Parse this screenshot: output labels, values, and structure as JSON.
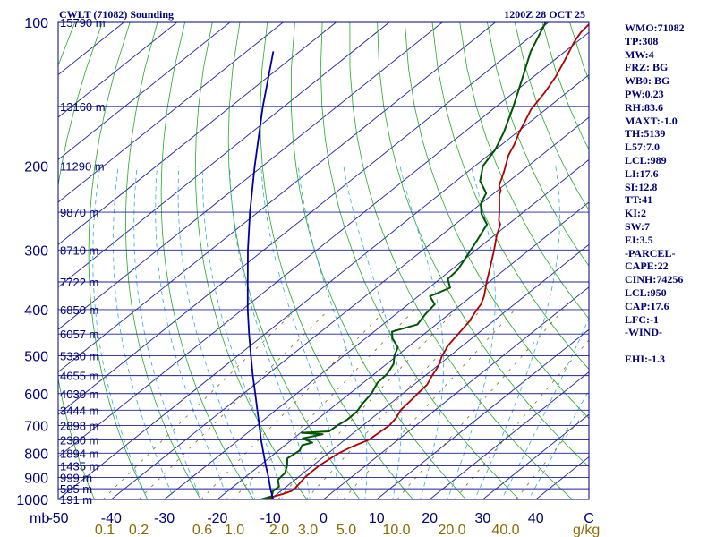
{
  "header": {
    "station_title": "CWLT (71082) Sounding",
    "time_title": "1200Z 28 OCT 25"
  },
  "info_panel": [
    "WMO:71082",
    "TP:308",
    "MW:4",
    "FRZ: BG",
    "WB0: BG",
    "PW:0.23",
    "RH:83.6",
    "MAXT:-1.0",
    "TH:5139",
    "L57:7.0",
    "LCL:989",
    "LI:17.6",
    "SI:12.8",
    "TT:41",
    "KI:2",
    "SW:7",
    "EI:3.5",
    "-PARCEL-",
    "CAPE:22",
    "CINH:74256",
    "LCL:950",
    "CAP:17.6",
    "LFC:-1",
    "-WIND-",
    "",
    "EHI:-1.3"
  ],
  "colors": {
    "axis": "#00007a",
    "isobar": "#1f1fa0",
    "isotherm": "#1f1fa0",
    "dry_adiabat": "#22aa22",
    "moist_adiabat": "#33aadd",
    "mixing_ratio": "#8a6a00",
    "temperature": "#b00000",
    "dewpoint": "#005500",
    "parcel": "#0000aa"
  },
  "chart_data": {
    "type": "line",
    "title": "CWLT (71082) Sounding",
    "subtitle": "1200Z 28 OCT 25",
    "xlabel": "C",
    "ylabel": "mb",
    "xlim": [
      -50,
      50
    ],
    "ylim": [
      1000,
      100
    ],
    "pressure_ticks": [
      "100",
      "200",
      "300",
      "400",
      "500",
      "600",
      "700",
      "800",
      "900",
      "1000"
    ],
    "temperature_ticks": [
      "-50",
      "-40",
      "-30",
      "-20",
      "-10",
      "0",
      "10",
      "20",
      "30",
      "40"
    ],
    "mixing_ratio_ticks": [
      "0.1",
      "0.2",
      "0.6",
      "1.0",
      "2.0",
      "3.0",
      "5.0",
      "10.0",
      "20.0",
      "40.0"
    ],
    "mixing_ratio_unit": "g/kg",
    "height_labels": [
      {
        "p": 100,
        "label": "15790 m"
      },
      {
        "p": 150,
        "label": "13160 m"
      },
      {
        "p": 200,
        "label": "11290 m"
      },
      {
        "p": 250,
        "label": "9870 m"
      },
      {
        "p": 300,
        "label": "8710 m"
      },
      {
        "p": 350,
        "label": "7722 m"
      },
      {
        "p": 400,
        "label": "6850 m"
      },
      {
        "p": 450,
        "label": "6057 m"
      },
      {
        "p": 500,
        "label": "5330 m"
      },
      {
        "p": 550,
        "label": "4655 m"
      },
      {
        "p": 600,
        "label": "4030 m"
      },
      {
        "p": 650,
        "label": "3444 m"
      },
      {
        "p": 700,
        "label": "2898 m"
      },
      {
        "p": 750,
        "label": "2380 m"
      },
      {
        "p": 800,
        "label": "1894 m"
      },
      {
        "p": 850,
        "label": "1435 m"
      },
      {
        "p": 900,
        "label": "999 m"
      },
      {
        "p": 950,
        "label": "585 m"
      },
      {
        "p": 1000,
        "label": "191 m"
      }
    ],
    "series": [
      {
        "name": "Temperature",
        "points": [
          [
            1000,
            -10.5
          ],
          [
            985,
            -10
          ],
          [
            975,
            -9
          ],
          [
            960,
            -8
          ],
          [
            945,
            -8
          ],
          [
            925,
            -8.3
          ],
          [
            900,
            -8.7
          ],
          [
            850,
            -8.8
          ],
          [
            800,
            -8
          ],
          [
            775,
            -7
          ],
          [
            750,
            -5.5
          ],
          [
            700,
            -5
          ],
          [
            675,
            -5.5
          ],
          [
            650,
            -6.5
          ],
          [
            610,
            -7
          ],
          [
            600,
            -7.2
          ],
          [
            575,
            -7.5
          ],
          [
            550,
            -8.7
          ],
          [
            525,
            -9.8
          ],
          [
            500,
            -11.5
          ],
          [
            475,
            -12.8
          ],
          [
            450,
            -13.6
          ],
          [
            425,
            -14.4
          ],
          [
            400,
            -15.8
          ],
          [
            390,
            -16.3
          ],
          [
            375,
            -17.6
          ],
          [
            350,
            -20.5
          ],
          [
            325,
            -23.4
          ],
          [
            300,
            -26.6
          ],
          [
            280,
            -29.5
          ],
          [
            265,
            -31.5
          ],
          [
            260,
            -32.7
          ],
          [
            250,
            -34.5
          ],
          [
            240,
            -36.5
          ],
          [
            230,
            -38.6
          ],
          [
            225,
            -39.4
          ],
          [
            220,
            -40.8
          ],
          [
            205,
            -43.3
          ],
          [
            190,
            -46.2
          ],
          [
            180,
            -47.7
          ],
          [
            170,
            -49.6
          ],
          [
            160,
            -51.3
          ],
          [
            152,
            -52.8
          ],
          [
            140,
            -54.2
          ],
          [
            130,
            -55.8
          ],
          [
            120,
            -58
          ],
          [
            110,
            -60.5
          ],
          [
            105,
            -61.5
          ],
          [
            100,
            -62
          ]
        ]
      },
      {
        "name": "Dewpoint",
        "points": [
          [
            1000,
            -11.8
          ],
          [
            985,
            -10.5
          ],
          [
            960,
            -11.5
          ],
          [
            940,
            -11.4
          ],
          [
            910,
            -13.2
          ],
          [
            880,
            -13.5
          ],
          [
            850,
            -14.8
          ],
          [
            820,
            -16.5
          ],
          [
            790,
            -16
          ],
          [
            770,
            -16.8
          ],
          [
            760,
            -15.5
          ],
          [
            745,
            -18.3
          ],
          [
            730,
            -15.5
          ],
          [
            725,
            -19.8
          ],
          [
            720,
            -15
          ],
          [
            700,
            -14.8
          ],
          [
            680,
            -14.3
          ],
          [
            655,
            -14.4
          ],
          [
            630,
            -15.2
          ],
          [
            600,
            -15.9
          ],
          [
            570,
            -17.3
          ],
          [
            545,
            -17.6
          ],
          [
            520,
            -18.7
          ],
          [
            500,
            -20.5
          ],
          [
            480,
            -21.8
          ],
          [
            460,
            -24.9
          ],
          [
            445,
            -26.6
          ],
          [
            430,
            -23.5
          ],
          [
            410,
            -24.4
          ],
          [
            390,
            -25
          ],
          [
            375,
            -27.8
          ],
          [
            360,
            -26
          ],
          [
            345,
            -28.5
          ],
          [
            330,
            -28.8
          ],
          [
            305,
            -30.6
          ],
          [
            285,
            -32.2
          ],
          [
            265,
            -34
          ],
          [
            252,
            -37.5
          ],
          [
            240,
            -40
          ],
          [
            228,
            -41.5
          ],
          [
            215,
            -45.5
          ],
          [
            200,
            -48.5
          ],
          [
            185,
            -50
          ],
          [
            170,
            -52.5
          ],
          [
            150,
            -56.8
          ],
          [
            130,
            -62
          ],
          [
            115,
            -66.5
          ],
          [
            100,
            -70.5
          ]
        ]
      },
      {
        "name": "Parcel",
        "points": [
          [
            1000,
            -9.5
          ],
          [
            950,
            -12.5
          ],
          [
            900,
            -15.5
          ],
          [
            850,
            -18.8
          ],
          [
            800,
            -22.2
          ],
          [
            750,
            -25.8
          ],
          [
            700,
            -29.5
          ],
          [
            650,
            -33.5
          ],
          [
            600,
            -37.8
          ],
          [
            550,
            -42.5
          ],
          [
            500,
            -47.5
          ],
          [
            450,
            -53
          ],
          [
            400,
            -59
          ],
          [
            350,
            -65.5
          ],
          [
            300,
            -73
          ],
          [
            250,
            -81.5
          ],
          [
            200,
            -91.5
          ],
          [
            150,
            -104
          ],
          [
            115,
            -115
          ]
        ]
      }
    ]
  }
}
